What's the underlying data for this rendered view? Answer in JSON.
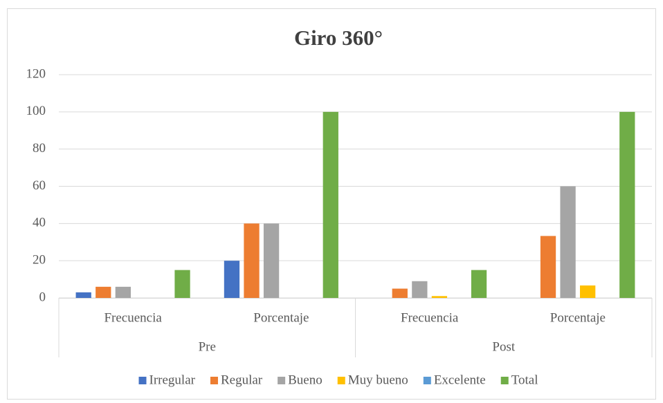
{
  "chart_data": {
    "type": "bar",
    "title": "Giro 360°",
    "categories": [
      "Frecuencia",
      "Porcentaje",
      "Frecuencia",
      "Porcentaje"
    ],
    "groups": [
      "Pre",
      "Post"
    ],
    "series": [
      {
        "name": "Irregular",
        "color": "#4472c4",
        "values": [
          3,
          20,
          0,
          0
        ]
      },
      {
        "name": "Regular",
        "color": "#ed7d31",
        "values": [
          6,
          40,
          5,
          33.3
        ]
      },
      {
        "name": "Bueno",
        "color": "#a5a5a5",
        "values": [
          6,
          40,
          9,
          60
        ]
      },
      {
        "name": "Muy bueno",
        "color": "#ffc000",
        "values": [
          0,
          0,
          1,
          6.7
        ]
      },
      {
        "name": "Excelente",
        "color": "#5b9bd5",
        "values": [
          0,
          0,
          0,
          0
        ]
      },
      {
        "name": "Total",
        "color": "#70ad47",
        "values": [
          15,
          100,
          15,
          100
        ]
      }
    ],
    "ylim": [
      0,
      120
    ],
    "yticks": [
      0,
      20,
      40,
      60,
      80,
      100,
      120
    ],
    "grid": true,
    "legend": "bottom"
  }
}
